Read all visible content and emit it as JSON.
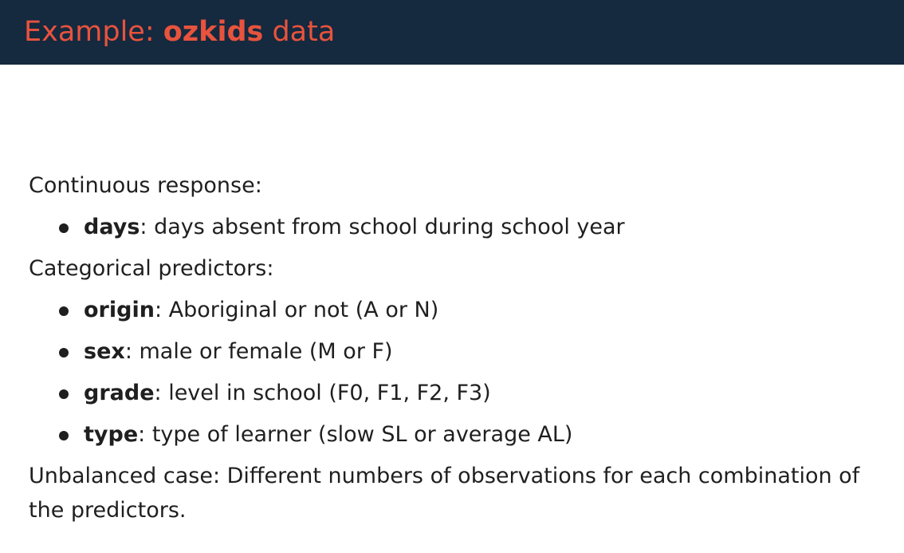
{
  "header": {
    "title_prefix": "Example: ",
    "title_emphasis": "ozkids",
    "title_suffix": " data",
    "background_color": "#15293f",
    "title_color": "#e8533d"
  },
  "body": {
    "response_heading": "Continuous response:",
    "response_items": [
      {
        "term": "days",
        "description": ": days absent from school during school year"
      }
    ],
    "predictors_heading": "Categorical predictors:",
    "predictor_items": [
      {
        "term": "origin",
        "description": ": Aboriginal or not (A or N)"
      },
      {
        "term": "sex",
        "description": ": male or female (M or F)"
      },
      {
        "term": "grade",
        "description": ": level in school (F0, F1, F2, F3)"
      },
      {
        "term": "type",
        "description": ": type of learner (slow SL or average AL)"
      }
    ],
    "closing_text": "Unbalanced case: Different numbers of observations for each combination of the predictors."
  }
}
